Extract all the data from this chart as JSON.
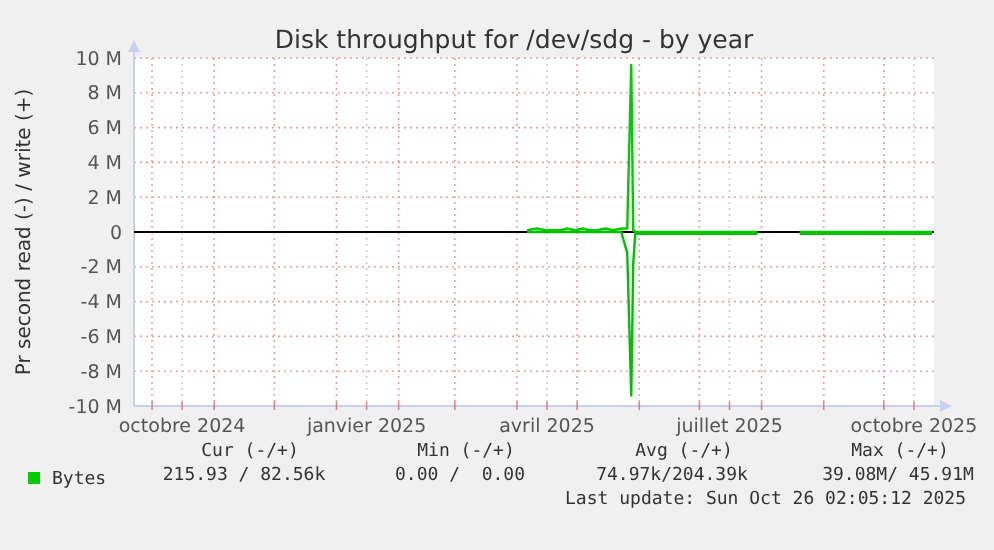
{
  "chart_data": {
    "type": "line",
    "title": "Disk throughput for /dev/sdg - by year",
    "ylabel": "Pr second read (-) / write (+)",
    "x": [
      "2025-04-06",
      "2025-04-11",
      "2025-04-15",
      "2025-04-19",
      "2025-04-23",
      "2025-04-26",
      "2025-04-30",
      "2025-05-04",
      "2025-05-07",
      "2025-05-11",
      "2025-05-15",
      "2025-05-19",
      "2025-05-23",
      "2025-05-26",
      "2025-05-28",
      "2025-05-29",
      "2025-05-30",
      "2025-06-02",
      "2025-06-12",
      "2025-06-22",
      "2025-07-02",
      "2025-07-12",
      "2025-07-22",
      "2025-07-30",
      "2025-08-10",
      "2025-08-20",
      "2025-08-31",
      "2025-09-10",
      "2025-09-20",
      "2025-09-30",
      "2025-10-10",
      "2025-10-20",
      "2025-10-25"
    ],
    "series": [
      {
        "name": "Bytes",
        "color": "#00cc00",
        "values": [
          100000,
          200000,
          100000,
          100000,
          100000,
          200000,
          100000,
          200000,
          100000,
          100000,
          200000,
          100000,
          200000,
          200000,
          9600000,
          100000,
          0,
          0,
          0,
          0,
          0,
          0,
          0,
          0,
          null,
          0,
          0,
          0,
          0,
          0,
          0,
          0,
          0
        ]
      },
      {
        "color": "#00c000",
        "values": [
          0,
          0,
          0,
          0,
          0,
          0,
          0,
          0,
          0,
          0,
          0,
          0,
          0,
          -1200000,
          -9400000,
          -1800000,
          -100000,
          -100000,
          -100000,
          -100000,
          -100000,
          -100000,
          -100000,
          -100000,
          null,
          -100000,
          -100000,
          -100000,
          -100000,
          -100000,
          -100000,
          -100000,
          -100000
        ]
      }
    ],
    "xlim": [
      "2024-09-22",
      "2025-10-26"
    ],
    "xticks": [
      {
        "value": "2024-10-01",
        "label": null
      },
      {
        "value": "2024-10-16",
        "label": "octobre 2024"
      },
      {
        "value": "2024-11-01",
        "label": null
      },
      {
        "value": "2024-12-01",
        "label": null
      },
      {
        "value": "2025-01-01",
        "label": null
      },
      {
        "value": "2025-01-16",
        "label": "janvier 2025"
      },
      {
        "value": "2025-02-01",
        "label": null
      },
      {
        "value": "2025-03-01",
        "label": null
      },
      {
        "value": "2025-04-01",
        "label": null
      },
      {
        "value": "2025-04-16",
        "label": "avril 2025"
      },
      {
        "value": "2025-05-01",
        "label": null
      },
      {
        "value": "2025-06-01",
        "label": null
      },
      {
        "value": "2025-07-01",
        "label": null
      },
      {
        "value": "2025-07-16",
        "label": "juillet 2025"
      },
      {
        "value": "2025-08-01",
        "label": null
      },
      {
        "value": "2025-09-01",
        "label": null
      },
      {
        "value": "2025-10-01",
        "label": null
      },
      {
        "value": "2025-10-16",
        "label": "octobre 2025"
      }
    ],
    "ylim": [
      -10000000,
      10000000
    ],
    "yticks": [
      {
        "value": -10000000,
        "label": "-10 M"
      },
      {
        "value": -8000000,
        "label": "-8 M"
      },
      {
        "value": -6000000,
        "label": "-6 M"
      },
      {
        "value": -4000000,
        "label": "-4 M"
      },
      {
        "value": -2000000,
        "label": "-2 M"
      },
      0,
      {
        "value": 2000000,
        "label": "2 M"
      },
      {
        "value": 4000000,
        "label": "4 M"
      },
      {
        "value": 6000000,
        "label": "6 M"
      },
      {
        "value": 8000000,
        "label": "8 M"
      },
      {
        "value": 10000000,
        "label": "10 M"
      }
    ],
    "grid": true,
    "legend": "bottom",
    "marker": "none",
    "line_style": "solid",
    "annotations": [
      "Cur (-/+)",
      "Min (-/+)",
      "Avg (-/+)",
      "Max (-/+)",
      "215.93 / 82.56k",
      "0.00 /  0.00",
      "74.97k/204.39k",
      "39.08M/ 45.91M",
      "Last update: Sun Oct 26 02:05:12 2025"
    ]
  }
}
